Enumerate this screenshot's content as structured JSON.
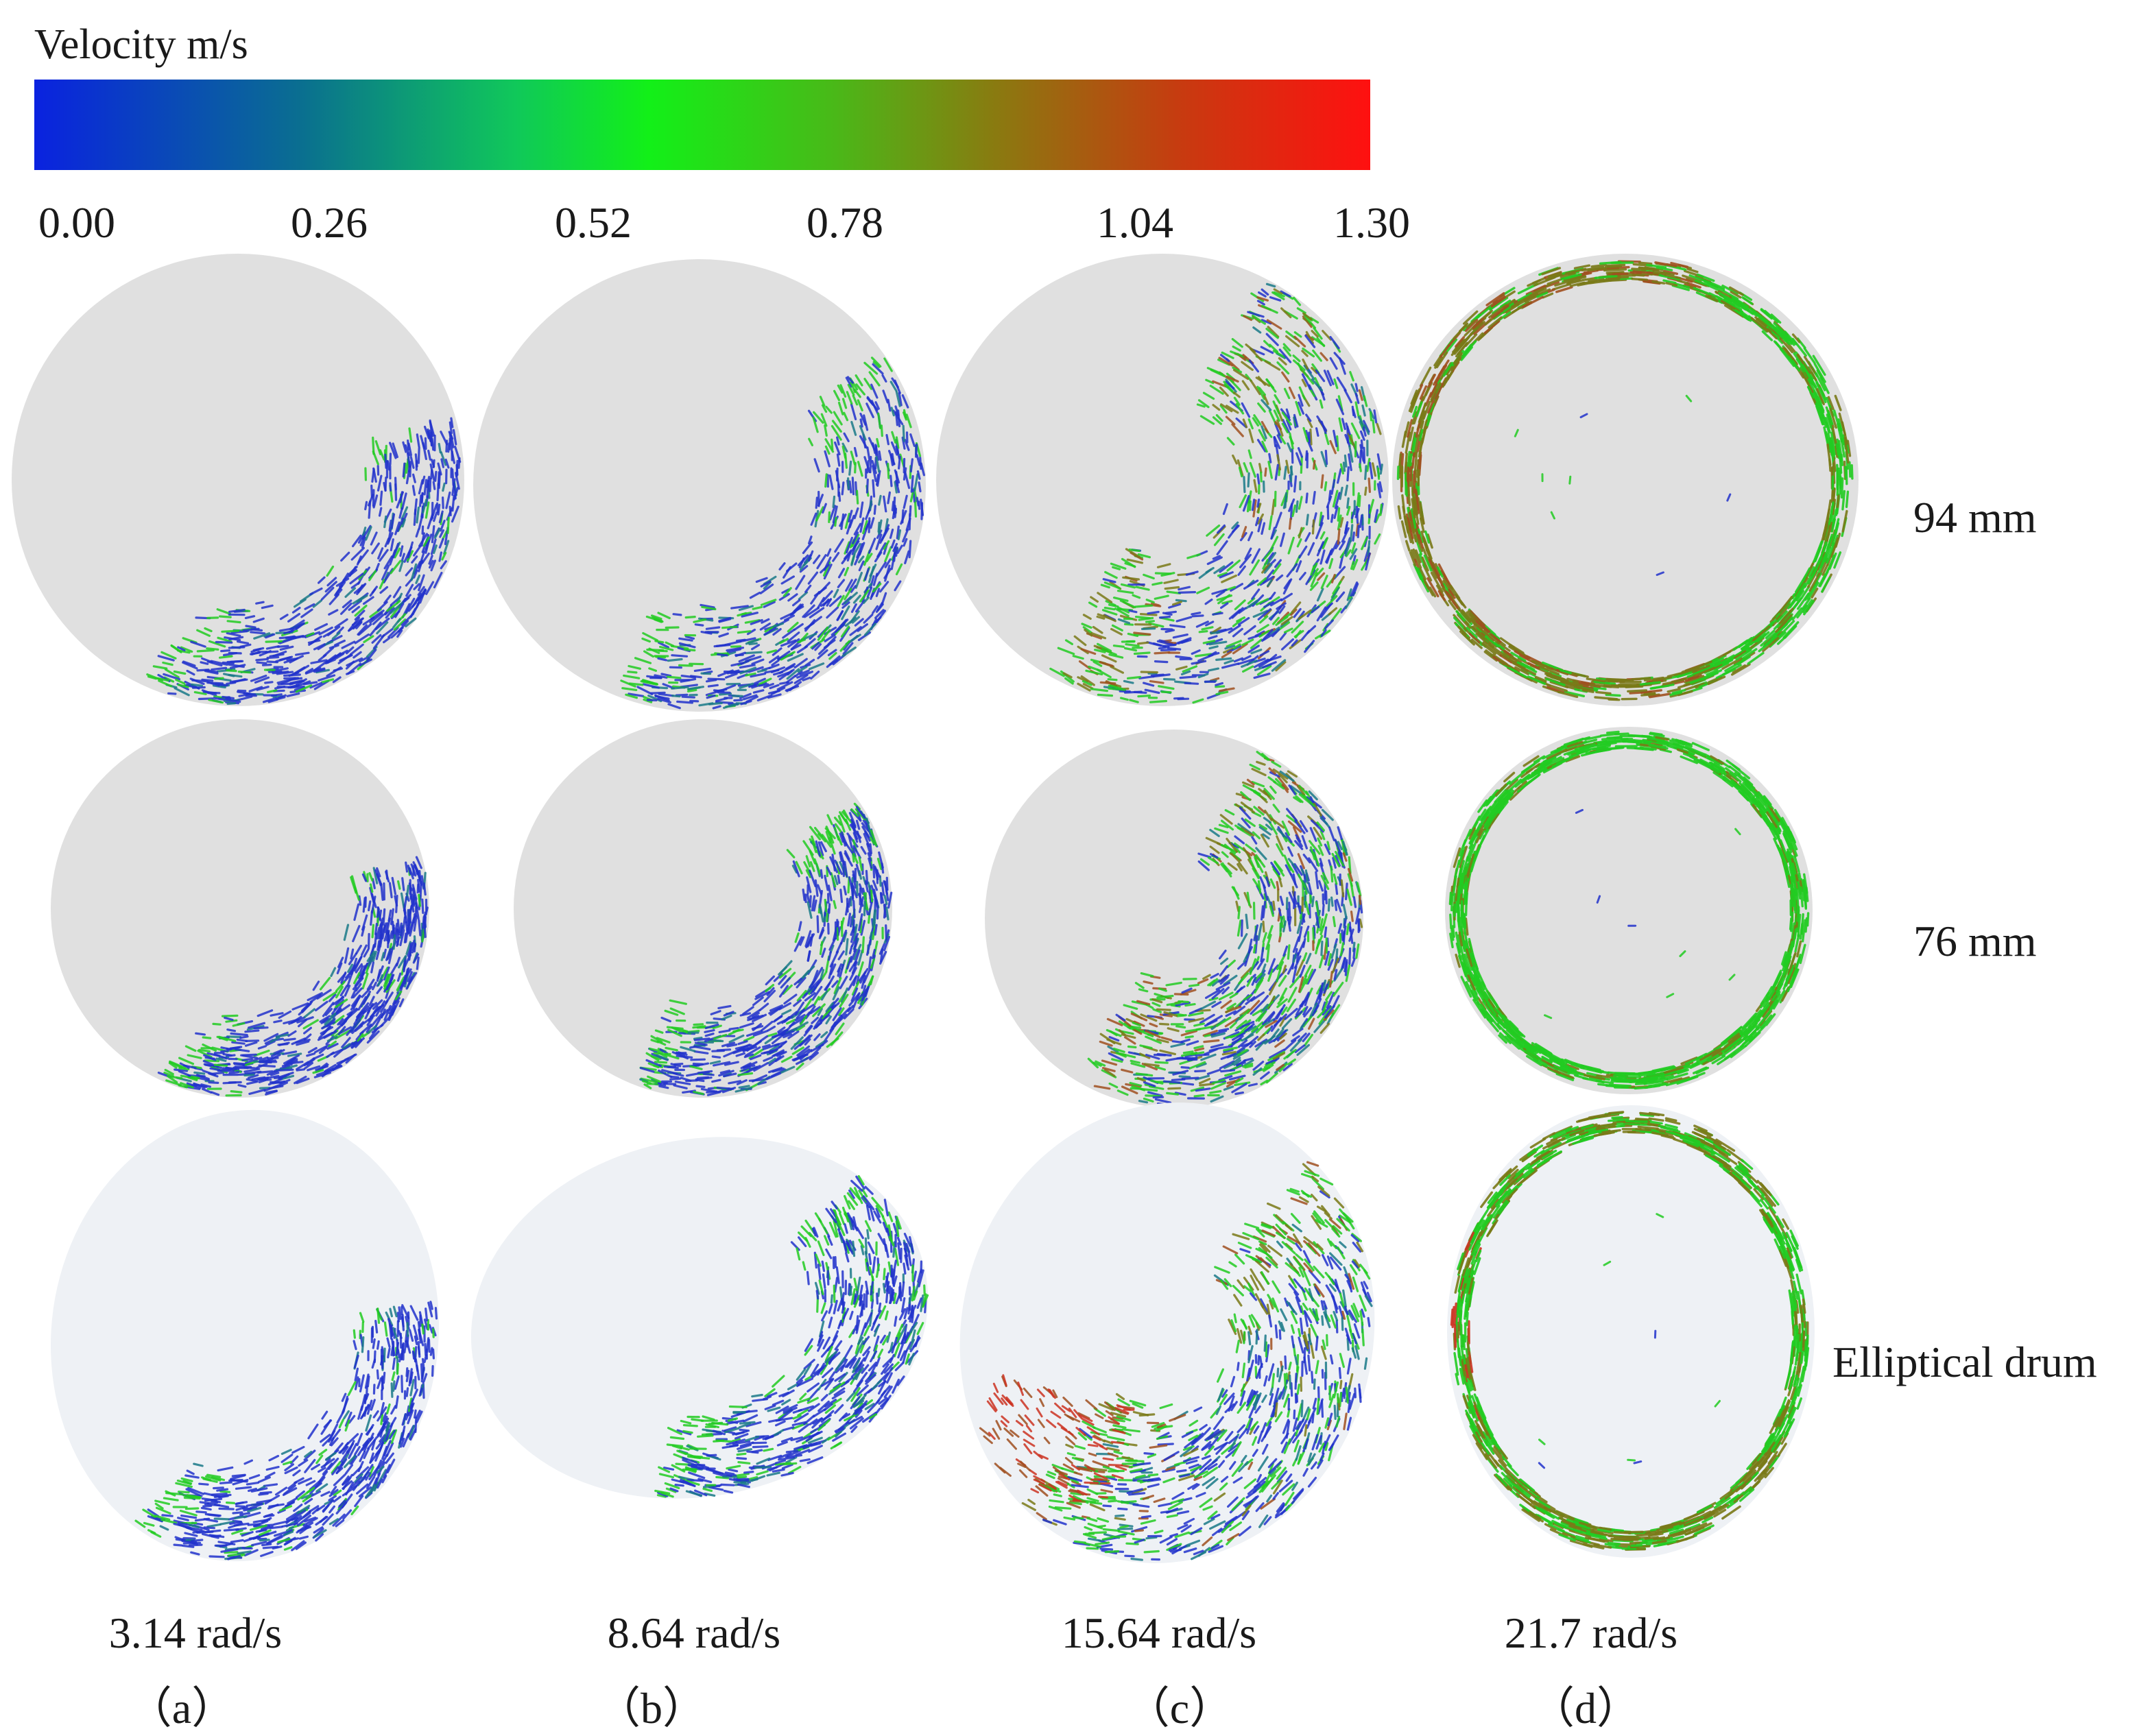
{
  "legend": {
    "title": "Velocity m/s",
    "ticks": [
      "0.00",
      "0.26",
      "0.52",
      "0.78",
      "1.04",
      "1.30"
    ],
    "range": [
      0.0,
      1.3
    ],
    "colors": [
      "#0a22e0",
      "#0a6f90",
      "#10c85a",
      "#12f018",
      "#4ab818",
      "#8a7a10",
      "#c83a10",
      "#ff1010"
    ]
  },
  "rows": [
    {
      "label": "94 mm",
      "shape": "circle"
    },
    {
      "label": "76 mm",
      "shape": "circle"
    },
    {
      "label": "Elliptical drum",
      "shape": "ellipse"
    }
  ],
  "columns": [
    {
      "speed": "3.14 rad/s",
      "letter": "（a）"
    },
    {
      "speed": "8.64 rad/s",
      "letter": "（b）"
    },
    {
      "speed": "15.64 rad/s",
      "letter": "（c）"
    },
    {
      "speed": "21.7 rad/s",
      "letter": "（d）"
    }
  ],
  "colors": {
    "drum_circle": "#e0e0e0",
    "drum_ellipse": "#eef1f5",
    "blue": "#2233cc",
    "teal": "#1a7a88",
    "green": "#22cc22",
    "olive": "#7a7a18",
    "brown": "#a05020",
    "red": "#cc3322"
  }
}
